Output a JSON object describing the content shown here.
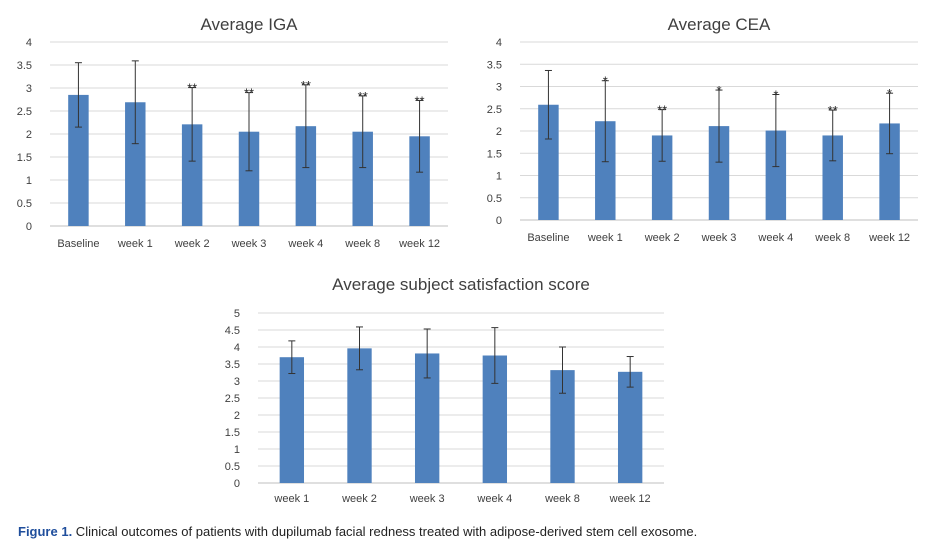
{
  "chart_data": [
    {
      "type": "bar",
      "title": "Average IGA",
      "categories": [
        "Baseline",
        "week 1",
        "week 2",
        "week 3",
        "week 4",
        "week 8",
        "week 12"
      ],
      "values": [
        2.85,
        2.69,
        2.21,
        2.05,
        2.17,
        2.05,
        1.95
      ],
      "error": [
        0.7,
        0.9,
        0.8,
        0.85,
        0.9,
        0.78,
        0.78
      ],
      "annotations": [
        "",
        "",
        "**",
        "**",
        "**",
        "**",
        "**"
      ],
      "ylim": [
        0,
        4
      ],
      "ytick_step": 0.5,
      "yticks": [
        "0",
        "0.5",
        "1",
        "1.5",
        "2",
        "2.5",
        "3",
        "3.5",
        "4"
      ],
      "xlabel": "",
      "ylabel": "",
      "grid": true,
      "bar_color": "#4f81bd"
    },
    {
      "type": "bar",
      "title": "Average CEA",
      "categories": [
        "Baseline",
        "week 1",
        "week 2",
        "week 3",
        "week 4",
        "week 8",
        "week 12"
      ],
      "values": [
        2.59,
        2.22,
        1.9,
        2.11,
        2.01,
        1.9,
        2.17
      ],
      "error": [
        0.77,
        0.91,
        0.58,
        0.81,
        0.81,
        0.57,
        0.68
      ],
      "annotations": [
        "",
        "*",
        "**",
        "*",
        "*",
        "**",
        "*"
      ],
      "ylim": [
        0,
        4
      ],
      "ytick_step": 0.5,
      "yticks": [
        "0",
        "0.5",
        "1",
        "1.5",
        "2",
        "2.5",
        "3",
        "3.5",
        "4"
      ],
      "xlabel": "",
      "ylabel": "",
      "grid": true,
      "bar_color": "#4f81bd"
    },
    {
      "type": "bar",
      "title": "Average subject satisfaction score",
      "categories": [
        "week 1",
        "week 2",
        "week 3",
        "week 4",
        "week 8",
        "week 12"
      ],
      "values": [
        3.7,
        3.96,
        3.81,
        3.75,
        3.32,
        3.27
      ],
      "error": [
        0.48,
        0.63,
        0.72,
        0.82,
        0.68,
        0.45
      ],
      "annotations": [
        "",
        "",
        "",
        "",
        "",
        ""
      ],
      "ylim": [
        0,
        5
      ],
      "ytick_step": 0.5,
      "yticks": [
        "0",
        "0.5",
        "1",
        "1.5",
        "2",
        "2.5",
        "3",
        "3.5",
        "4",
        "4.5",
        "5"
      ],
      "xlabel": "",
      "ylabel": "",
      "grid": true,
      "bar_color": "#4f81bd"
    }
  ],
  "caption": {
    "lead": "Figure 1.",
    "text": " Clinical outcomes of patients with dupilumab facial redness treated with adipose-derived stem cell exosome."
  }
}
